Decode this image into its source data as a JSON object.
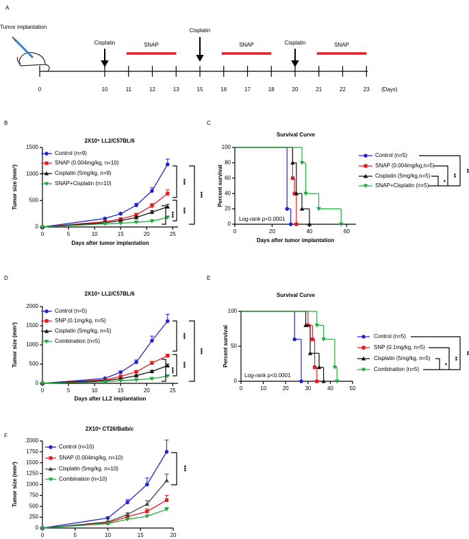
{
  "panel_labels": [
    "A",
    "B",
    "C",
    "D",
    "E",
    "F"
  ],
  "timeline": {
    "caption": "Tumor implantation",
    "ticks": [
      0,
      10,
      11,
      12,
      13,
      15,
      16,
      17,
      18,
      20,
      21,
      22,
      23
    ],
    "unit": "(Days)",
    "events": [
      {
        "label": "Cisplatin",
        "day": 10
      },
      {
        "label": "Cisplatin",
        "day": 15
      },
      {
        "label": "Cisplatin",
        "day": 20
      }
    ],
    "periods": [
      {
        "label": "SNAP",
        "start": 11,
        "end": 13
      },
      {
        "label": "SNAP",
        "start": 16,
        "end": 18
      },
      {
        "label": "SNAP",
        "start": 21,
        "end": 23
      }
    ]
  },
  "chart_data": [
    {
      "type": "line",
      "title": "2X10⁵ LL2/C57BL/6",
      "x_label": "Days after tumor implantation",
      "y_label": "Tumor size (mm³)",
      "x": [
        0,
        12,
        15,
        18,
        21,
        24
      ],
      "xlim": [
        0,
        26
      ],
      "xticks": [
        0,
        5,
        10,
        15,
        20,
        25
      ],
      "ylim": [
        0,
        1500
      ],
      "yticks": [
        0,
        500,
        1000,
        1500
      ],
      "series": [
        {
          "name": "Control (n=9)",
          "color": "#2222d4",
          "marker": "circle",
          "values": [
            0,
            160,
            250,
            410,
            680,
            1180
          ],
          "errors": [
            0,
            15,
            20,
            35,
            60,
            100
          ]
        },
        {
          "name": "SNAP (0.004mg/kg, n=10)",
          "color": "#e8191f",
          "marker": "square",
          "values": [
            0,
            100,
            150,
            230,
            400,
            630
          ],
          "errors": [
            0,
            10,
            15,
            25,
            40,
            70
          ]
        },
        {
          "name": "Cisplatin (5mg/kg, n=9)",
          "color": "#111111",
          "marker": "triangle-up",
          "values": [
            0,
            80,
            120,
            180,
            280,
            380
          ],
          "errors": [
            0,
            10,
            12,
            20,
            30,
            45
          ]
        },
        {
          "name": "SNAP+Cisplatin (n=10)",
          "color": "#1faa3c",
          "marker": "triangle-down",
          "values": [
            0,
            60,
            70,
            90,
            110,
            180
          ],
          "errors": [
            0,
            8,
            10,
            12,
            20,
            25
          ]
        }
      ],
      "significance": [
        "***",
        "***",
        "***",
        "***"
      ]
    },
    {
      "type": "survival",
      "title": "Survival Curve",
      "x_label": "Days after tumor implantation",
      "y_label": "Percent survival",
      "xlim": [
        0,
        65
      ],
      "xticks": [
        0,
        20,
        40,
        60
      ],
      "ylim": [
        0,
        100
      ],
      "yticks": [
        0,
        20,
        40,
        60,
        80,
        100
      ],
      "annotation": "Log-rank p<0.0001",
      "series": [
        {
          "name": "Control (n=5)",
          "color": "#2222d4",
          "marker": "circle",
          "x": [
            0,
            28,
            30
          ],
          "values": [
            100,
            20,
            0
          ]
        },
        {
          "name": "SNAP (0.004mg/kg,n=5)",
          "color": "#e8191f",
          "marker": "square",
          "x": [
            0,
            31,
            32,
            33
          ],
          "values": [
            100,
            60,
            40,
            0
          ]
        },
        {
          "name": "Cisplatin (5mg/kg,n=5)",
          "color": "#111111",
          "marker": "triangle-up",
          "x": [
            0,
            31,
            33,
            36,
            40
          ],
          "values": [
            100,
            80,
            40,
            20,
            0
          ]
        },
        {
          "name": "SNAP+Cisplatin (n=5)",
          "color": "#1faa3c",
          "marker": "triangle-down",
          "x": [
            0,
            36,
            38,
            45,
            57
          ],
          "values": [
            100,
            80,
            40,
            20,
            0
          ]
        }
      ],
      "significance": [
        "**",
        "**",
        "*"
      ]
    },
    {
      "type": "line",
      "title": "2X10⁵ LL2/C57BL/6",
      "x_label": "Days after LL2 implantation",
      "y_label": "Tumor size (mm³)",
      "x": [
        0,
        12,
        15,
        18,
        21,
        24
      ],
      "xlim": [
        0,
        26
      ],
      "xticks": [
        0,
        5,
        10,
        15,
        20,
        25
      ],
      "ylim": [
        0,
        2000
      ],
      "yticks": [
        0,
        500,
        1000,
        1500,
        2000
      ],
      "series": [
        {
          "name": "Control (n=5)",
          "color": "#2222d4",
          "marker": "circle",
          "values": [
            0,
            130,
            290,
            550,
            1110,
            1620
          ],
          "errors": [
            0,
            15,
            30,
            60,
            120,
            180
          ]
        },
        {
          "name": "SNP (0.1mg/kg, n=5)",
          "color": "#e8191f",
          "marker": "square",
          "values": [
            0,
            90,
            180,
            300,
            530,
            720
          ],
          "errors": [
            0,
            10,
            20,
            30,
            40,
            40
          ]
        },
        {
          "name": "Cisplatin (5mg/kg, n=5)",
          "color": "#111111",
          "marker": "triangle-up",
          "values": [
            0,
            70,
            120,
            200,
            310,
            460
          ],
          "errors": [
            0,
            10,
            15,
            20,
            30,
            40
          ]
        },
        {
          "name": "Combination (n=5)",
          "color": "#1faa3c",
          "marker": "triangle-down",
          "values": [
            0,
            40,
            70,
            90,
            120,
            190
          ],
          "errors": [
            0,
            8,
            10,
            12,
            15,
            20
          ]
        }
      ],
      "significance": [
        "***",
        "***",
        "***",
        "***"
      ]
    },
    {
      "type": "survival",
      "title": "Survival Curve",
      "y_label": "Percent survival",
      "xlim": [
        0,
        50
      ],
      "xticks": [
        0,
        10,
        20,
        30,
        40,
        50
      ],
      "ylim": [
        0,
        100
      ],
      "yticks": [
        0,
        50,
        100
      ],
      "annotation": "Log-rank p<0.0001",
      "series": [
        {
          "name": "Control (n=5)",
          "color": "#2222d4",
          "marker": "circle",
          "x": [
            0,
            24,
            27
          ],
          "values": [
            100,
            60,
            0
          ]
        },
        {
          "name": "SNP (0.1mg/kg, n=5)",
          "color": "#e8191f",
          "marker": "square",
          "x": [
            0,
            30,
            32,
            33,
            34
          ],
          "values": [
            100,
            80,
            60,
            20,
            0
          ]
        },
        {
          "name": "Cisplatin (5mg/kg, n=5)",
          "color": "#111111",
          "marker": "triangle-up",
          "x": [
            0,
            29,
            31,
            35,
            37
          ],
          "values": [
            100,
            80,
            40,
            20,
            0
          ]
        },
        {
          "name": "Combination (n=5)",
          "color": "#1faa3c",
          "marker": "triangle-down",
          "x": [
            0,
            34,
            37,
            42,
            43
          ],
          "values": [
            100,
            80,
            60,
            20,
            0
          ]
        }
      ],
      "significance": [
        "**",
        "**",
        "*"
      ]
    },
    {
      "type": "line",
      "title": "2X10⁵ CT26/Balb/c",
      "y_label": "Tumor size (mm³)",
      "x": [
        0,
        10,
        13,
        16,
        19
      ],
      "xlim": [
        0,
        20
      ],
      "xticks": [
        0,
        5,
        10,
        15,
        20
      ],
      "ylim": [
        0,
        2000
      ],
      "yticks": [
        0,
        250,
        500,
        750,
        1000,
        1250,
        1500,
        1750,
        2000
      ],
      "series": [
        {
          "name": "Control (n=10)",
          "color": "#2222d4",
          "marker": "circle",
          "values": [
            0,
            230,
            590,
            1000,
            1750
          ],
          "errors": [
            0,
            30,
            60,
            150,
            270
          ]
        },
        {
          "name": "SNAP (0.004mg/kg, n=10)",
          "color": "#e8191f",
          "marker": "square",
          "values": [
            0,
            120,
            260,
            380,
            640
          ],
          "errors": [
            0,
            20,
            40,
            60,
            110
          ]
        },
        {
          "name": "Cisplatin (5mg/kg, n=10)",
          "color": "#444444",
          "marker": "triangle-up",
          "values": [
            0,
            140,
            310,
            550,
            1090
          ],
          "errors": [
            0,
            20,
            40,
            80,
            150
          ]
        },
        {
          "name": "Combination (n=10)",
          "color": "#1faa3c",
          "marker": "triangle-down",
          "values": [
            0,
            100,
            200,
            270,
            430
          ],
          "errors": [
            0,
            10,
            20,
            30,
            40
          ]
        }
      ],
      "significance": [
        "***"
      ]
    }
  ]
}
